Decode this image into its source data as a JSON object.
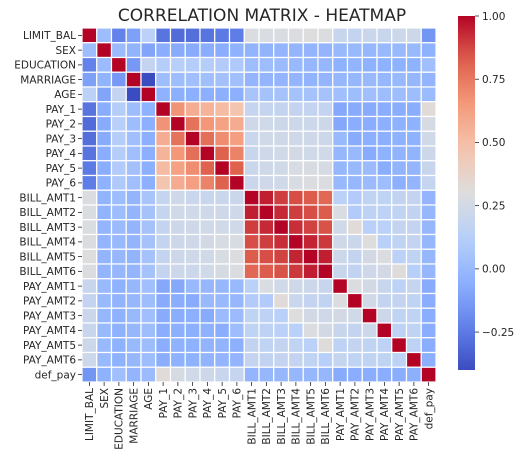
{
  "chart_data": {
    "type": "heatmap",
    "title": "CORRELATION MATRIX - HEATMAP",
    "variables": [
      "LIMIT_BAL",
      "SEX",
      "EDUCATION",
      "MARRIAGE",
      "AGE",
      "PAY_1",
      "PAY_2",
      "PAY_3",
      "PAY_4",
      "PAY_5",
      "PAY_6",
      "BILL_AMT1",
      "BILL_AMT2",
      "BILL_AMT3",
      "BILL_AMT4",
      "BILL_AMT5",
      "BILL_AMT6",
      "PAY_AMT1",
      "PAY_AMT2",
      "PAY_AMT3",
      "PAY_AMT4",
      "PAY_AMT5",
      "PAY_AMT6",
      "def_pay"
    ],
    "values": [
      [
        1.0,
        0.02,
        -0.22,
        -0.11,
        0.14,
        -0.27,
        -0.3,
        -0.29,
        -0.27,
        -0.25,
        -0.24,
        0.29,
        0.28,
        0.28,
        0.29,
        0.3,
        0.29,
        0.2,
        0.18,
        0.21,
        0.2,
        0.22,
        0.22,
        -0.15
      ],
      [
        0.02,
        1.0,
        0.01,
        -0.03,
        -0.09,
        -0.06,
        -0.07,
        -0.07,
        -0.06,
        -0.06,
        -0.04,
        -0.03,
        -0.03,
        -0.02,
        -0.02,
        -0.02,
        -0.02,
        0.0,
        -0.0,
        -0.01,
        -0.0,
        -0.0,
        -0.0,
        -0.04
      ],
      [
        -0.22,
        0.01,
        1.0,
        -0.14,
        0.18,
        0.11,
        0.12,
        0.11,
        0.11,
        0.1,
        0.09,
        0.02,
        0.02,
        0.01,
        -0.0,
        -0.01,
        -0.01,
        -0.04,
        -0.03,
        -0.04,
        -0.04,
        -0.04,
        -0.04,
        0.03
      ],
      [
        -0.11,
        -0.03,
        -0.14,
        1.0,
        -0.41,
        0.02,
        0.02,
        0.03,
        0.03,
        0.04,
        0.03,
        -0.02,
        -0.02,
        -0.02,
        -0.02,
        -0.03,
        -0.02,
        -0.01,
        -0.01,
        -0.0,
        -0.01,
        -0.0,
        -0.01,
        -0.02
      ],
      [
        0.14,
        -0.09,
        0.18,
        -0.41,
        1.0,
        -0.04,
        -0.05,
        -0.05,
        -0.05,
        -0.05,
        -0.05,
        0.06,
        0.05,
        0.05,
        0.05,
        0.05,
        0.05,
        0.03,
        0.02,
        0.03,
        0.02,
        0.02,
        0.02,
        0.01
      ],
      [
        -0.27,
        -0.06,
        0.11,
        0.02,
        -0.04,
        1.0,
        0.67,
        0.57,
        0.54,
        0.51,
        0.47,
        0.19,
        0.19,
        0.18,
        0.18,
        0.18,
        0.18,
        -0.08,
        -0.07,
        -0.07,
        -0.06,
        -0.06,
        -0.06,
        0.32
      ],
      [
        -0.3,
        -0.07,
        0.12,
        0.02,
        -0.05,
        0.67,
        1.0,
        0.77,
        0.66,
        0.62,
        0.58,
        0.23,
        0.24,
        0.22,
        0.22,
        0.22,
        0.22,
        -0.08,
        -0.06,
        -0.06,
        -0.05,
        -0.04,
        -0.04,
        0.26
      ],
      [
        -0.29,
        -0.07,
        0.11,
        0.03,
        -0.05,
        0.57,
        0.77,
        1.0,
        0.78,
        0.69,
        0.63,
        0.21,
        0.24,
        0.23,
        0.23,
        0.23,
        0.22,
        0.0,
        -0.07,
        -0.05,
        -0.05,
        -0.04,
        -0.04,
        0.24
      ],
      [
        -0.27,
        -0.06,
        0.11,
        0.03,
        -0.05,
        0.54,
        0.66,
        0.78,
        1.0,
        0.82,
        0.72,
        0.2,
        0.23,
        0.24,
        0.25,
        0.24,
        0.24,
        -0.01,
        -0.0,
        -0.07,
        -0.04,
        -0.03,
        -0.03,
        0.22
      ],
      [
        -0.25,
        -0.06,
        0.1,
        0.04,
        -0.05,
        0.51,
        0.62,
        0.69,
        0.82,
        1.0,
        0.82,
        0.21,
        0.23,
        0.24,
        0.27,
        0.27,
        0.26,
        -0.01,
        -0.0,
        0.01,
        -0.06,
        -0.03,
        -0.02,
        0.2
      ],
      [
        -0.24,
        -0.04,
        0.09,
        0.03,
        -0.05,
        0.47,
        0.58,
        0.63,
        0.72,
        0.82,
        1.0,
        0.21,
        0.23,
        0.24,
        0.27,
        0.29,
        0.29,
        -0.0,
        -0.01,
        0.01,
        0.02,
        -0.05,
        -0.02,
        0.19
      ],
      [
        0.29,
        -0.03,
        0.02,
        -0.02,
        0.06,
        0.19,
        0.23,
        0.21,
        0.2,
        0.21,
        0.21,
        1.0,
        0.95,
        0.89,
        0.86,
        0.83,
        0.8,
        0.14,
        0.1,
        0.16,
        0.16,
        0.17,
        0.18,
        -0.02
      ],
      [
        0.28,
        -0.03,
        0.02,
        -0.02,
        0.05,
        0.19,
        0.24,
        0.24,
        0.23,
        0.23,
        0.23,
        0.95,
        1.0,
        0.93,
        0.89,
        0.86,
        0.83,
        0.28,
        0.1,
        0.15,
        0.15,
        0.16,
        0.17,
        -0.01
      ],
      [
        0.28,
        -0.02,
        0.01,
        -0.02,
        0.05,
        0.18,
        0.22,
        0.23,
        0.24,
        0.24,
        0.24,
        0.89,
        0.93,
        1.0,
        0.92,
        0.88,
        0.85,
        0.24,
        0.32,
        0.13,
        0.14,
        0.18,
        0.18,
        -0.01
      ],
      [
        0.29,
        -0.02,
        -0.0,
        -0.02,
        0.05,
        0.18,
        0.22,
        0.23,
        0.25,
        0.27,
        0.27,
        0.86,
        0.89,
        0.92,
        1.0,
        0.94,
        0.9,
        0.23,
        0.21,
        0.3,
        0.13,
        0.16,
        0.18,
        -0.01
      ],
      [
        0.3,
        -0.02,
        -0.01,
        -0.03,
        0.05,
        0.18,
        0.22,
        0.23,
        0.24,
        0.27,
        0.29,
        0.83,
        0.86,
        0.88,
        0.94,
        1.0,
        0.95,
        0.22,
        0.18,
        0.25,
        0.29,
        0.14,
        0.16,
        -0.01
      ],
      [
        0.29,
        -0.02,
        -0.01,
        -0.02,
        0.05,
        0.18,
        0.22,
        0.22,
        0.24,
        0.26,
        0.29,
        0.8,
        0.83,
        0.85,
        0.9,
        0.95,
        1.0,
        0.2,
        0.17,
        0.23,
        0.25,
        0.31,
        0.12,
        -0.01
      ],
      [
        0.2,
        0.0,
        -0.04,
        -0.01,
        0.03,
        -0.08,
        -0.08,
        0.0,
        -0.01,
        -0.01,
        -0.0,
        0.14,
        0.28,
        0.24,
        0.23,
        0.22,
        0.2,
        1.0,
        0.29,
        0.25,
        0.2,
        0.15,
        0.19,
        -0.07
      ],
      [
        0.18,
        -0.0,
        -0.03,
        -0.01,
        0.02,
        -0.07,
        -0.06,
        -0.07,
        -0.0,
        -0.0,
        -0.01,
        0.1,
        0.1,
        0.32,
        0.21,
        0.18,
        0.17,
        0.29,
        1.0,
        0.24,
        0.18,
        0.18,
        0.16,
        -0.06
      ],
      [
        0.21,
        -0.01,
        -0.04,
        -0.0,
        0.03,
        -0.07,
        -0.06,
        -0.05,
        -0.07,
        0.01,
        0.01,
        0.16,
        0.15,
        0.13,
        0.3,
        0.25,
        0.23,
        0.25,
        0.24,
        1.0,
        0.22,
        0.16,
        0.16,
        -0.06
      ],
      [
        0.2,
        -0.0,
        -0.04,
        -0.01,
        0.02,
        -0.06,
        -0.05,
        -0.05,
        -0.04,
        -0.06,
        0.02,
        0.16,
        0.15,
        0.14,
        0.13,
        0.29,
        0.25,
        0.2,
        0.18,
        0.22,
        1.0,
        0.15,
        0.16,
        -0.06
      ],
      [
        0.22,
        -0.0,
        -0.04,
        -0.0,
        0.02,
        -0.06,
        -0.04,
        -0.04,
        -0.03,
        -0.03,
        -0.05,
        0.17,
        0.16,
        0.18,
        0.16,
        0.14,
        0.31,
        0.15,
        0.18,
        0.16,
        0.15,
        1.0,
        0.15,
        -0.06
      ],
      [
        0.22,
        -0.0,
        -0.04,
        -0.01,
        0.02,
        -0.06,
        -0.04,
        -0.04,
        -0.03,
        -0.02,
        -0.02,
        0.18,
        0.17,
        0.18,
        0.18,
        0.16,
        0.12,
        0.19,
        0.16,
        0.16,
        0.16,
        0.15,
        1.0,
        -0.05
      ],
      [
        -0.15,
        -0.04,
        0.03,
        -0.02,
        0.01,
        0.32,
        0.26,
        0.24,
        0.22,
        0.2,
        0.19,
        -0.02,
        -0.01,
        -0.01,
        -0.01,
        -0.01,
        -0.01,
        -0.07,
        -0.06,
        -0.06,
        -0.06,
        -0.06,
        -0.05,
        1.0
      ]
    ],
    "color_scale": {
      "name": "coolwarm",
      "min": -0.4,
      "max": 1.0
    },
    "colorbar_ticks": [
      -0.25,
      0.0,
      0.25,
      0.5,
      0.75,
      1.0
    ],
    "colorbar_tick_labels": [
      "−0.25",
      "0.00",
      "0.25",
      "0.50",
      "0.75",
      "1.00"
    ],
    "grid_line_color": "#ffffff"
  }
}
